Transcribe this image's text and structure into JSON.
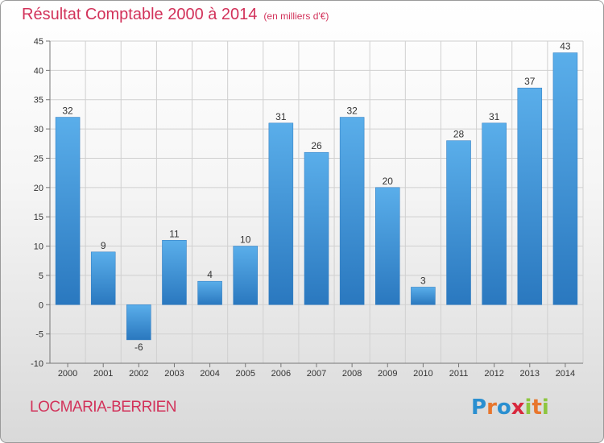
{
  "chart_data": {
    "type": "bar",
    "title": "Résultat Comptable 2000 à 2014",
    "subtitle": "(en milliers d'€)",
    "categories": [
      "2000",
      "2001",
      "2002",
      "2003",
      "2004",
      "2005",
      "2006",
      "2007",
      "2008",
      "2009",
      "2010",
      "2011",
      "2012",
      "2013",
      "2014"
    ],
    "values": [
      32,
      9,
      -6,
      11,
      4,
      10,
      31,
      26,
      32,
      20,
      3,
      28,
      31,
      37,
      43
    ],
    "ylim": [
      -10,
      45
    ],
    "yticks": [
      -10,
      -5,
      0,
      5,
      10,
      15,
      20,
      25,
      30,
      35,
      40,
      45
    ],
    "grid": true,
    "bar_color": "#3a8fd6"
  },
  "footer": {
    "place": "LOCMARIA-BERRIEN",
    "logo_letters": [
      "P",
      "r",
      "o",
      "x",
      "i",
      "t",
      "i"
    ],
    "logo_colors": [
      "#2a8fd0",
      "#e8762d",
      "#2a8fd0",
      "#d8283d",
      "#8dc63f",
      "#e8762d",
      "#8dc63f"
    ]
  }
}
